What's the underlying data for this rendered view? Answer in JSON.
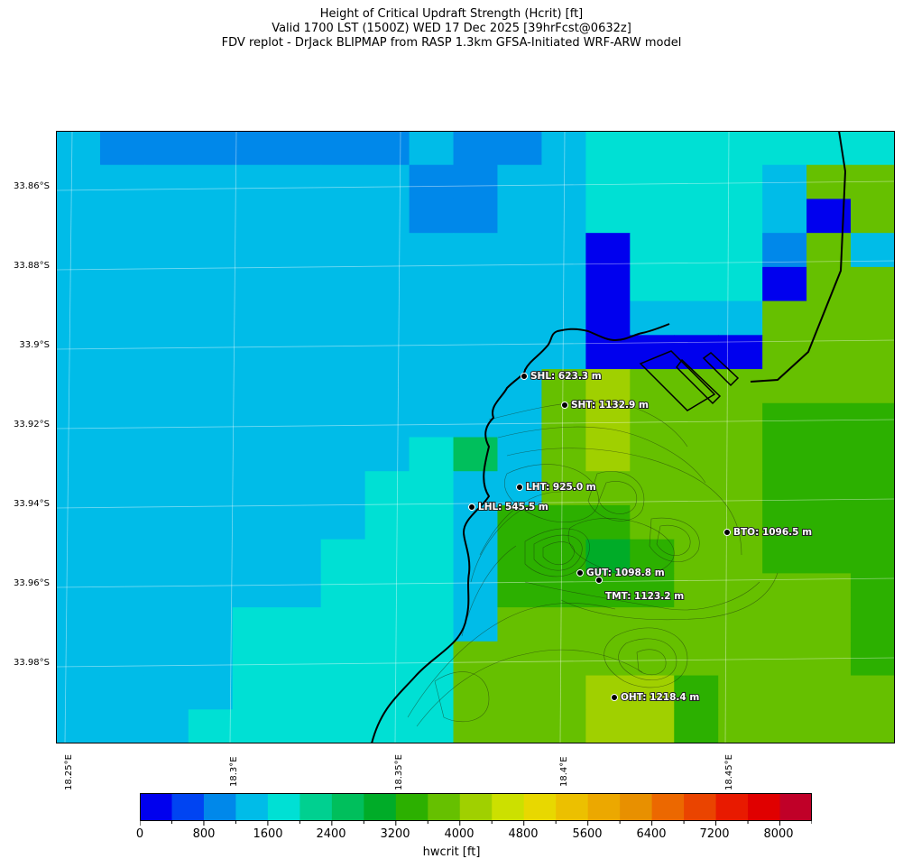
{
  "title": {
    "line1": "Height of Critical Updraft Strength (Hcrit) [ft]",
    "line2": "Valid 1700 LST (1500Z) WED 17 Dec 2025 [39hrFcst@0632z]",
    "line3": "FDV replot - DrJack BLIPMAP from RASP 1.3km GFSA-Initiated WRF-ARW model"
  },
  "lat_labels": [
    "33.86°S",
    "33.88°S",
    "33.9°S",
    "33.92°S",
    "33.94°S",
    "33.96°S",
    "33.98°S"
  ],
  "lon_labels": [
    "18.25°E",
    "18.3°E",
    "18.35°E",
    "18.4°E",
    "18.45°E"
  ],
  "stations": [
    {
      "label": "SHL: 623.3 m"
    },
    {
      "label": "SHT: 1132.9 m"
    },
    {
      "label": "LHT: 925.0 m"
    },
    {
      "label": "LHL: 545.5 m"
    },
    {
      "label": "BTO: 1096.5 m"
    },
    {
      "label": "GUT: 1098.8 m"
    },
    {
      "label": "TMT: 1123.2 m"
    },
    {
      "label": "OHT: 1218.4 m"
    }
  ],
  "colorbar": {
    "label": "hwcrit [ft]",
    "ticks": [
      "0",
      "800",
      "1600",
      "2400",
      "3200",
      "4000",
      "4800",
      "5600",
      "6400",
      "7200",
      "8000"
    ],
    "colors": [
      "#0000ee",
      "#0044f2",
      "#0088ea",
      "#00bce8",
      "#00e0d4",
      "#00d090",
      "#00bf5c",
      "#00ac28",
      "#2cb000",
      "#66c000",
      "#a0d000",
      "#cce000",
      "#e8d800",
      "#ecc000",
      "#eca800",
      "#e89000",
      "#ec6800",
      "#ea4400",
      "#e81a00",
      "#e00000",
      "#c00028"
    ]
  },
  "grid": {
    "rows": [
      [
        3,
        2,
        2,
        2,
        2,
        2,
        2,
        2,
        3,
        2,
        2,
        3,
        4,
        4,
        4,
        4,
        4,
        4,
        4
      ],
      [
        3,
        3,
        3,
        3,
        3,
        3,
        3,
        3,
        2,
        2,
        3,
        3,
        4,
        4,
        4,
        4,
        3,
        9,
        9
      ],
      [
        3,
        3,
        3,
        3,
        3,
        3,
        3,
        3,
        2,
        2,
        3,
        3,
        4,
        4,
        4,
        4,
        3,
        0,
        9
      ],
      [
        3,
        3,
        3,
        3,
        3,
        3,
        3,
        3,
        3,
        3,
        3,
        3,
        0,
        4,
        4,
        4,
        2,
        9,
        3
      ],
      [
        3,
        3,
        3,
        3,
        3,
        3,
        3,
        3,
        3,
        3,
        3,
        3,
        0,
        4,
        4,
        4,
        0,
        9,
        9
      ],
      [
        3,
        3,
        3,
        3,
        3,
        3,
        3,
        3,
        3,
        3,
        3,
        3,
        0,
        3,
        3,
        3,
        9,
        9,
        9
      ],
      [
        3,
        3,
        3,
        3,
        3,
        3,
        3,
        3,
        3,
        3,
        3,
        3,
        0,
        0,
        0,
        0,
        9,
        9,
        9
      ],
      [
        3,
        3,
        3,
        3,
        3,
        3,
        3,
        3,
        3,
        3,
        3,
        9,
        10,
        9,
        9,
        9,
        9,
        9,
        9
      ],
      [
        3,
        3,
        3,
        3,
        3,
        3,
        3,
        3,
        3,
        3,
        3,
        9,
        10,
        9,
        9,
        9,
        8,
        8,
        8
      ],
      [
        3,
        3,
        3,
        3,
        3,
        3,
        3,
        3,
        4,
        6,
        3,
        9,
        10,
        9,
        9,
        9,
        8,
        8,
        8
      ],
      [
        3,
        3,
        3,
        3,
        3,
        3,
        3,
        4,
        4,
        3,
        3,
        9,
        9,
        9,
        9,
        9,
        8,
        8,
        8
      ],
      [
        3,
        3,
        3,
        3,
        3,
        3,
        3,
        4,
        4,
        3,
        8,
        8,
        8,
        9,
        9,
        9,
        8,
        8,
        8
      ],
      [
        3,
        3,
        3,
        3,
        3,
        3,
        4,
        4,
        4,
        3,
        8,
        8,
        7,
        8,
        9,
        9,
        8,
        8,
        8
      ],
      [
        3,
        3,
        3,
        3,
        3,
        3,
        4,
        4,
        4,
        3,
        8,
        8,
        8,
        8,
        9,
        9,
        9,
        9,
        8
      ],
      [
        3,
        3,
        3,
        3,
        4,
        4,
        4,
        4,
        4,
        3,
        9,
        9,
        9,
        9,
        9,
        9,
        9,
        9,
        8
      ],
      [
        3,
        3,
        3,
        3,
        4,
        4,
        4,
        4,
        4,
        9,
        9,
        9,
        9,
        9,
        9,
        9,
        9,
        9,
        8
      ],
      [
        3,
        3,
        3,
        3,
        4,
        4,
        4,
        4,
        4,
        9,
        9,
        9,
        10,
        10,
        8,
        9,
        9,
        9,
        9
      ],
      [
        3,
        3,
        3,
        4,
        4,
        4,
        4,
        4,
        4,
        9,
        9,
        9,
        10,
        10,
        8,
        9,
        9,
        9,
        9
      ]
    ]
  }
}
